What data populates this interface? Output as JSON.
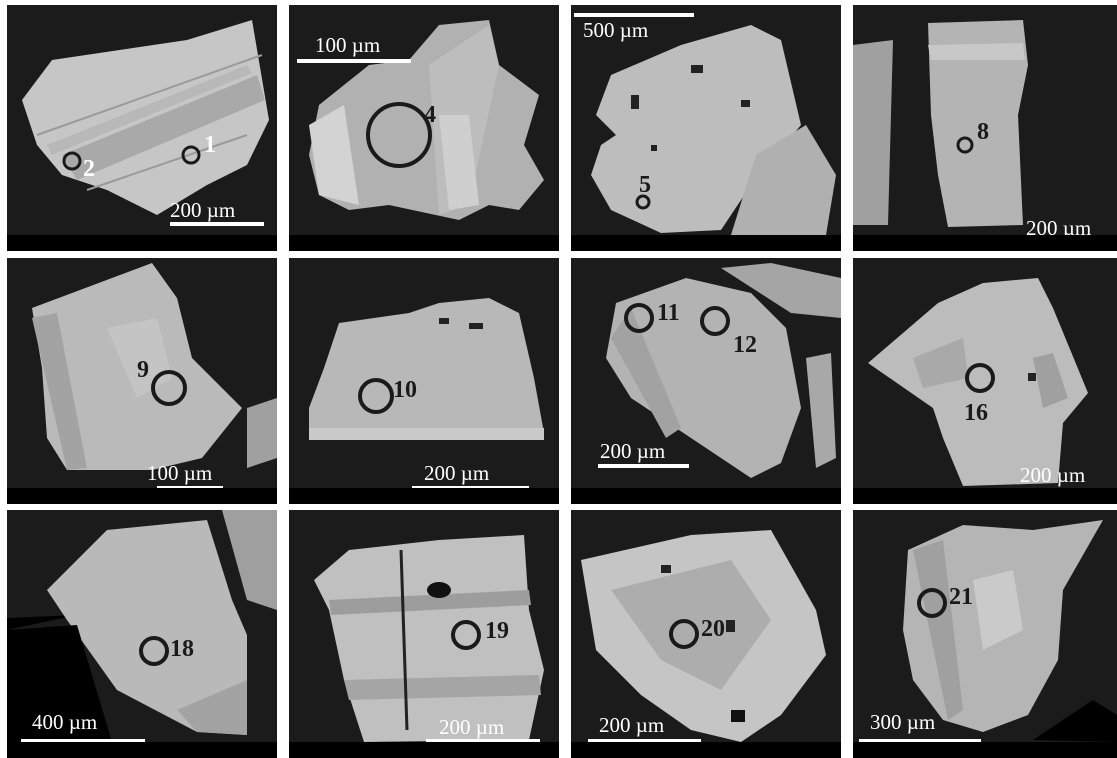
{
  "panels": [
    {
      "id": "p1",
      "spots": [
        "1",
        "2"
      ],
      "scale": "200 µm"
    },
    {
      "id": "p2",
      "spots": [
        "4"
      ],
      "scale": "100 µm"
    },
    {
      "id": "p3",
      "spots": [
        "5"
      ],
      "scale": "500 µm"
    },
    {
      "id": "p4",
      "spots": [
        "8"
      ],
      "scale": "200 µm"
    },
    {
      "id": "p5",
      "spots": [
        "9"
      ],
      "scale": "100 µm"
    },
    {
      "id": "p6",
      "spots": [
        "10"
      ],
      "scale": "200 µm"
    },
    {
      "id": "p7",
      "spots": [
        "11",
        "12"
      ],
      "scale": "200 µm"
    },
    {
      "id": "p8",
      "spots": [
        "16"
      ],
      "scale": "200 µm"
    },
    {
      "id": "p9",
      "spots": [
        "18"
      ],
      "scale": "400 µm"
    },
    {
      "id": "p10",
      "spots": [
        "19"
      ],
      "scale": "200 µm"
    },
    {
      "id": "p11",
      "spots": [
        "20"
      ],
      "scale": "200 µm"
    },
    {
      "id": "p12",
      "spots": [
        "21"
      ],
      "scale": "300 µm"
    }
  ],
  "colors": {
    "background": "#1c1b1c",
    "grain_light": "#c9c9c9",
    "grain_mid": "#adadad",
    "grain_dark": "#8f8f8f",
    "spot_ring": "#1a1a1a",
    "scale_text": "#ffffff"
  }
}
